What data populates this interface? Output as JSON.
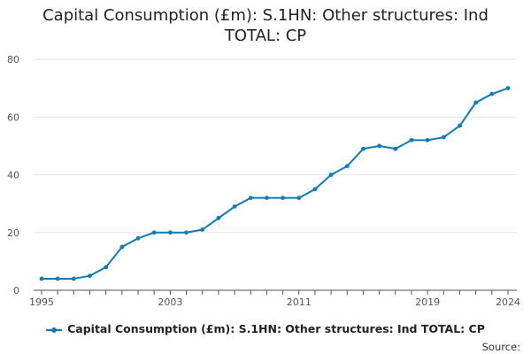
{
  "title_line1": "Capital Consumption (£m): S.1HN: Other structures: Ind",
  "title_line2": "TOTAL: CP",
  "legend_label": "Capital Consumption (£m): S.1HN: Other structures: Ind TOTAL: CP",
  "source_label": "Source:",
  "colors": {
    "series": "#0f7bb8",
    "grid": "#e5e5e5",
    "axis": "#555555",
    "tick_text": "#555555"
  },
  "chart_data": {
    "type": "line",
    "title": "Capital Consumption (£m): S.1HN: Other structures: Ind TOTAL: CP",
    "xlabel": "",
    "ylabel": "",
    "xlim": [
      1995,
      2024
    ],
    "ylim": [
      0,
      80
    ],
    "x_ticks": [
      "1995",
      "2003",
      "2011",
      "2019",
      "2024"
    ],
    "y_ticks": [
      "0",
      "20",
      "40",
      "60",
      "80"
    ],
    "grid": true,
    "legend_position": "bottom",
    "series": [
      {
        "name": "Capital Consumption (£m): S.1HN: Other structures: Ind TOTAL: CP",
        "x": [
          1995,
          1996,
          1997,
          1998,
          1999,
          2000,
          2001,
          2002,
          2003,
          2004,
          2005,
          2006,
          2007,
          2008,
          2009,
          2010,
          2011,
          2012,
          2013,
          2014,
          2015,
          2016,
          2017,
          2018,
          2019,
          2020,
          2021,
          2022,
          2023,
          2024
        ],
        "values": [
          4,
          4,
          4,
          5,
          8,
          15,
          18,
          20,
          20,
          20,
          21,
          25,
          29,
          32,
          32,
          32,
          32,
          35,
          40,
          43,
          49,
          50,
          49,
          52,
          52,
          53,
          57,
          65,
          68,
          70
        ]
      }
    ]
  }
}
